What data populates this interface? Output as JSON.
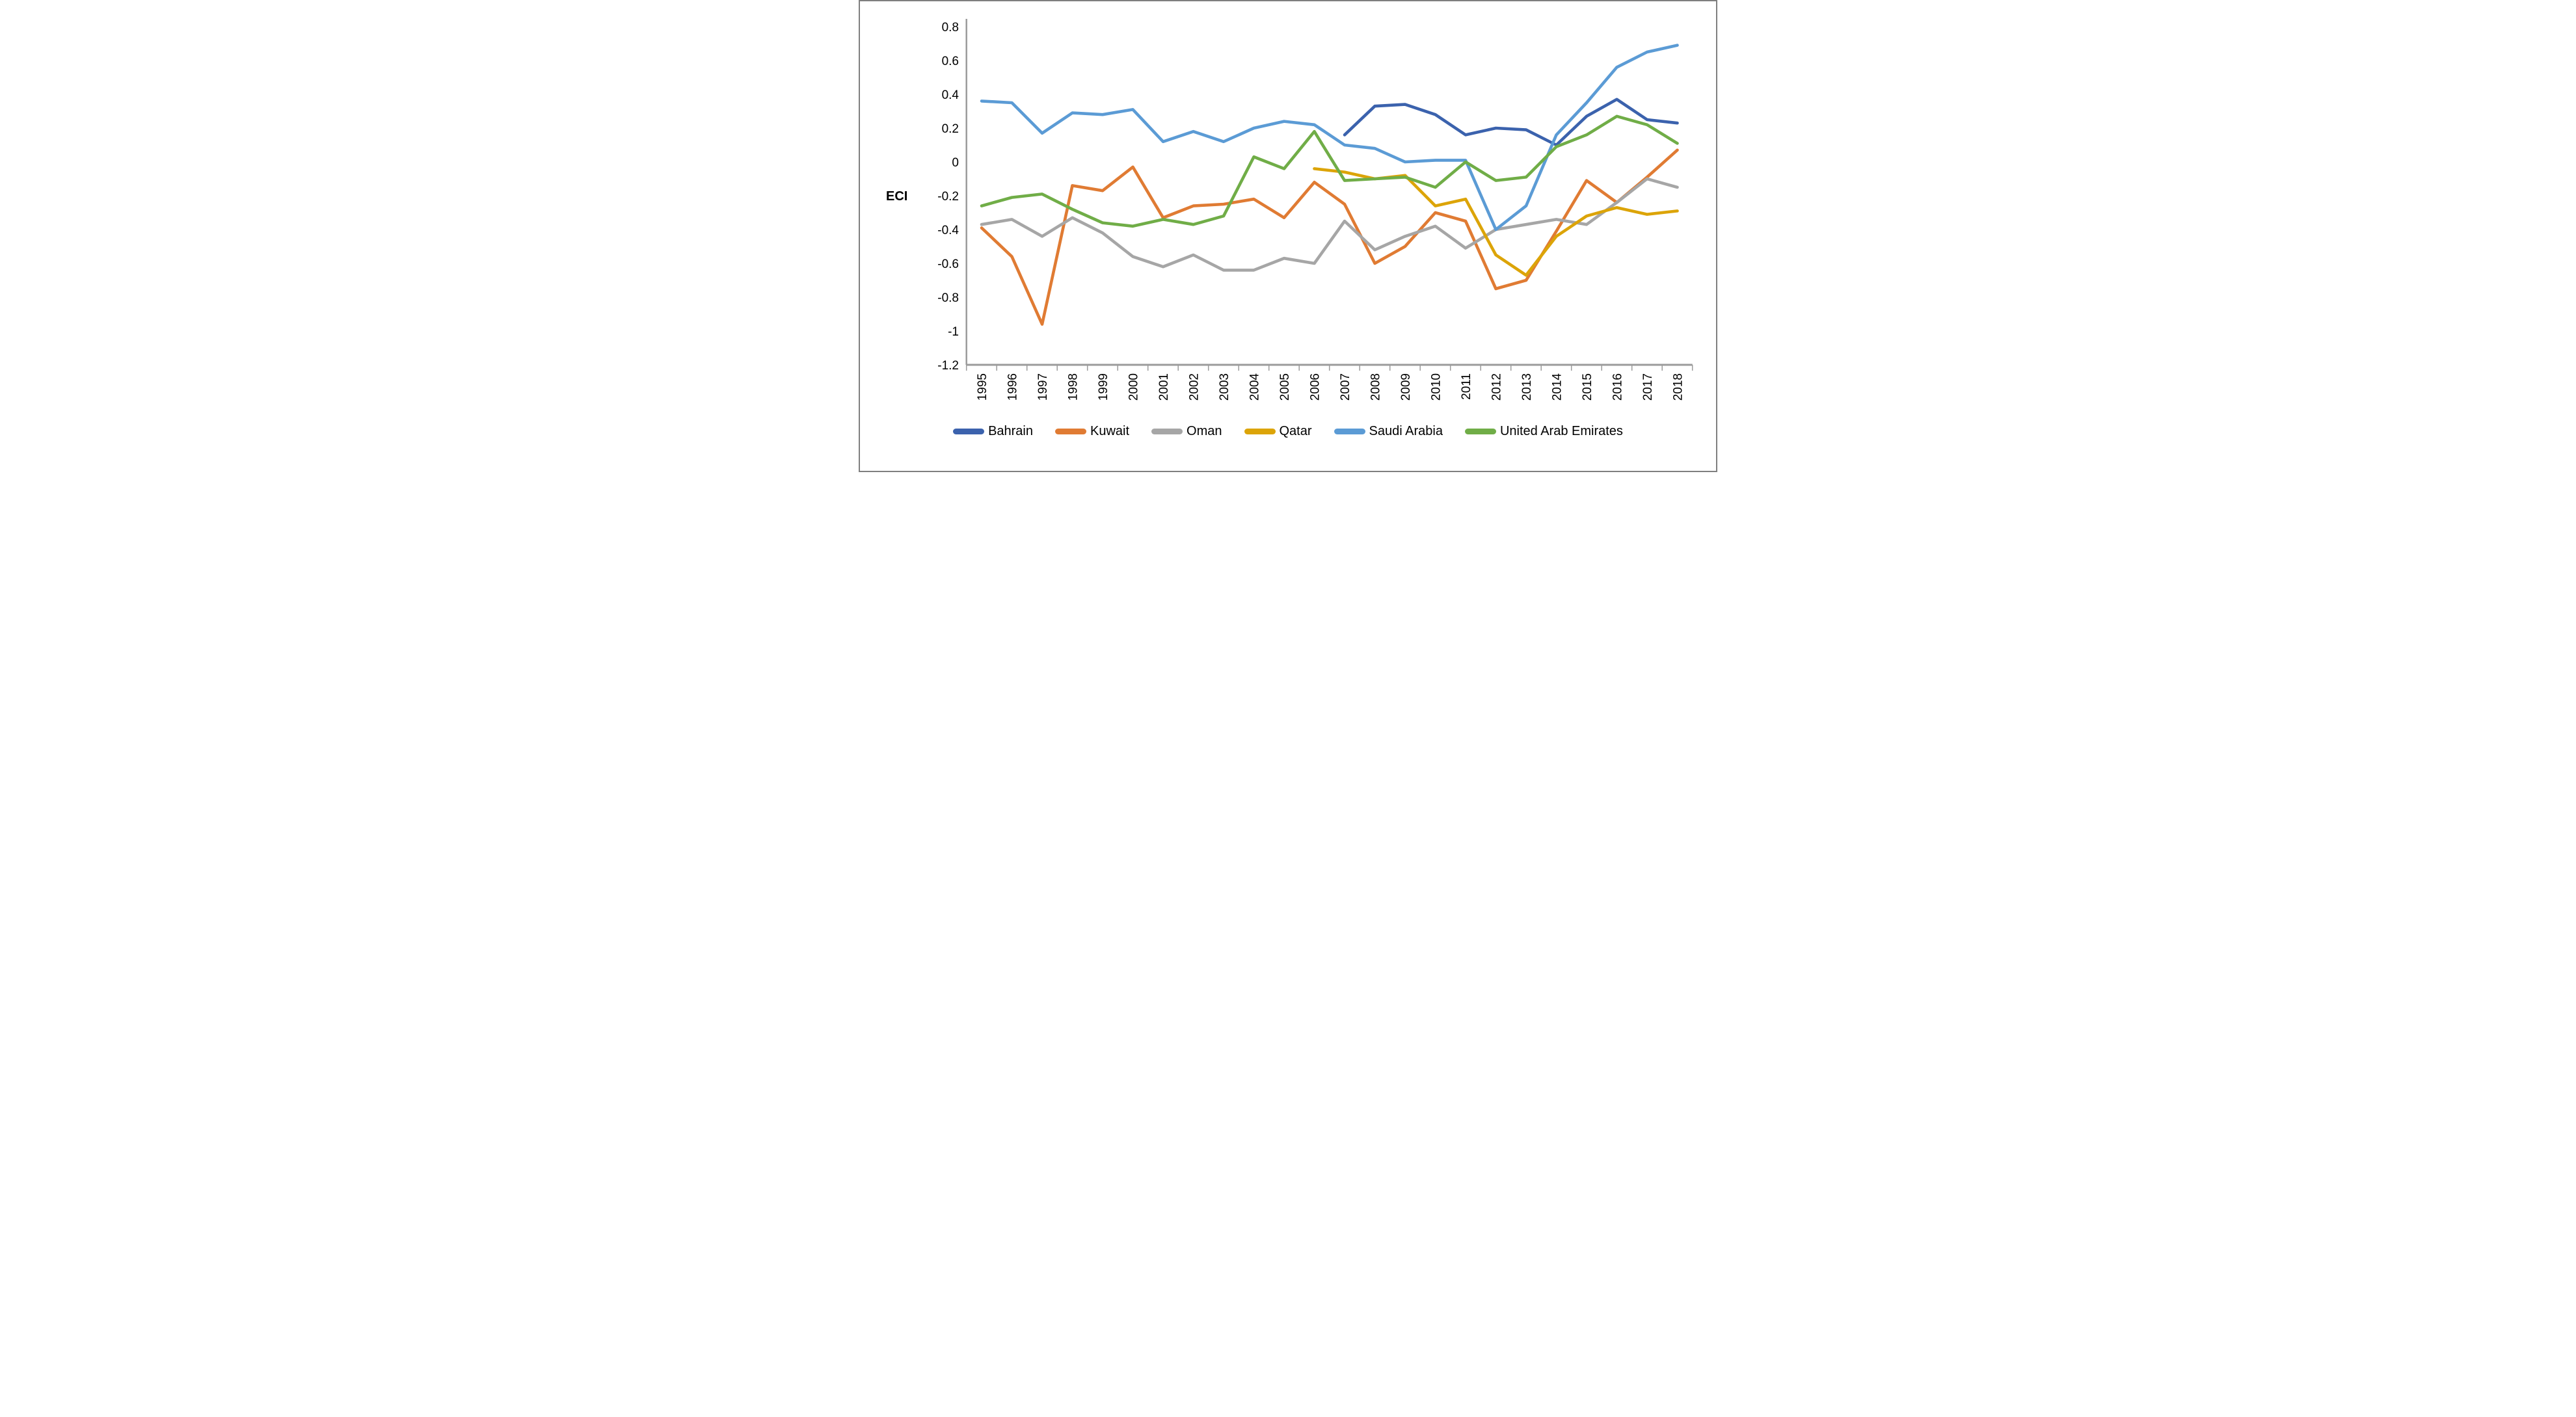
{
  "chart_data": {
    "type": "line",
    "title": "",
    "xlabel": "",
    "ylabel": "ECI",
    "ylim": [
      -1.2,
      0.8
    ],
    "grid": false,
    "legend_position": "bottom",
    "y_tick_labels": [
      "0.8",
      "0.6",
      "0.4",
      "0.2",
      "0",
      "-0.2",
      "-0.4",
      "-0.6",
      "-0.8",
      "-1",
      "-1.2"
    ],
    "x": [
      1995,
      1996,
      1997,
      1998,
      1999,
      2000,
      2001,
      2002,
      2003,
      2004,
      2005,
      2006,
      2007,
      2008,
      2009,
      2010,
      2011,
      2012,
      2013,
      2014,
      2015,
      2016,
      2017,
      2018
    ],
    "series": [
      {
        "name": "Bahrain",
        "color": "#3B62AD",
        "values": [
          null,
          null,
          null,
          null,
          null,
          null,
          null,
          null,
          null,
          null,
          null,
          null,
          0.16,
          0.33,
          0.34,
          0.28,
          0.16,
          0.2,
          0.19,
          0.1,
          0.27,
          0.37,
          0.25,
          0.23
        ]
      },
      {
        "name": "Kuwait",
        "color": "#E07B33",
        "values": [
          -0.39,
          -0.56,
          -0.96,
          -0.14,
          -0.17,
          -0.03,
          -0.33,
          -0.26,
          -0.25,
          -0.22,
          -0.33,
          -0.12,
          -0.25,
          -0.6,
          -0.5,
          -0.3,
          -0.35,
          -0.75,
          -0.7,
          -0.41,
          -0.11,
          -0.24,
          -0.09,
          0.07
        ]
      },
      {
        "name": "Oman",
        "color": "#A6A6A6",
        "values": [
          -0.37,
          -0.34,
          -0.44,
          -0.33,
          -0.42,
          -0.56,
          -0.62,
          -0.55,
          -0.64,
          -0.64,
          -0.57,
          -0.6,
          -0.35,
          -0.52,
          -0.44,
          -0.38,
          -0.51,
          -0.4,
          -0.37,
          -0.34,
          -0.37,
          -0.24,
          -0.1,
          -0.15
        ]
      },
      {
        "name": "Qatar",
        "color": "#DCA408",
        "values": [
          null,
          null,
          null,
          null,
          null,
          null,
          null,
          null,
          null,
          null,
          null,
          -0.04,
          -0.06,
          -0.1,
          -0.08,
          -0.26,
          -0.22,
          -0.55,
          -0.67,
          -0.44,
          -0.32,
          -0.27,
          -0.31,
          -0.29
        ]
      },
      {
        "name": "Saudi Arabia",
        "color": "#5B9BD5",
        "values": [
          0.36,
          0.35,
          0.17,
          0.29,
          0.28,
          0.31,
          0.12,
          0.18,
          0.12,
          0.2,
          0.24,
          0.22,
          0.1,
          0.08,
          0.0,
          0.01,
          0.01,
          -0.4,
          -0.26,
          0.16,
          0.35,
          0.56,
          0.65,
          0.69
        ]
      },
      {
        "name": "United Arab Emirates",
        "color": "#70AD47",
        "values": [
          -0.26,
          -0.21,
          -0.19,
          -0.28,
          -0.36,
          -0.38,
          -0.34,
          -0.37,
          -0.32,
          0.03,
          -0.04,
          0.18,
          -0.11,
          -0.1,
          -0.09,
          -0.15,
          0.0,
          -0.11,
          -0.09,
          0.09,
          0.16,
          0.27,
          0.22,
          0.11
        ]
      }
    ],
    "axis_color": "#9b9b9b",
    "tick_color": "#9b9b9b"
  }
}
